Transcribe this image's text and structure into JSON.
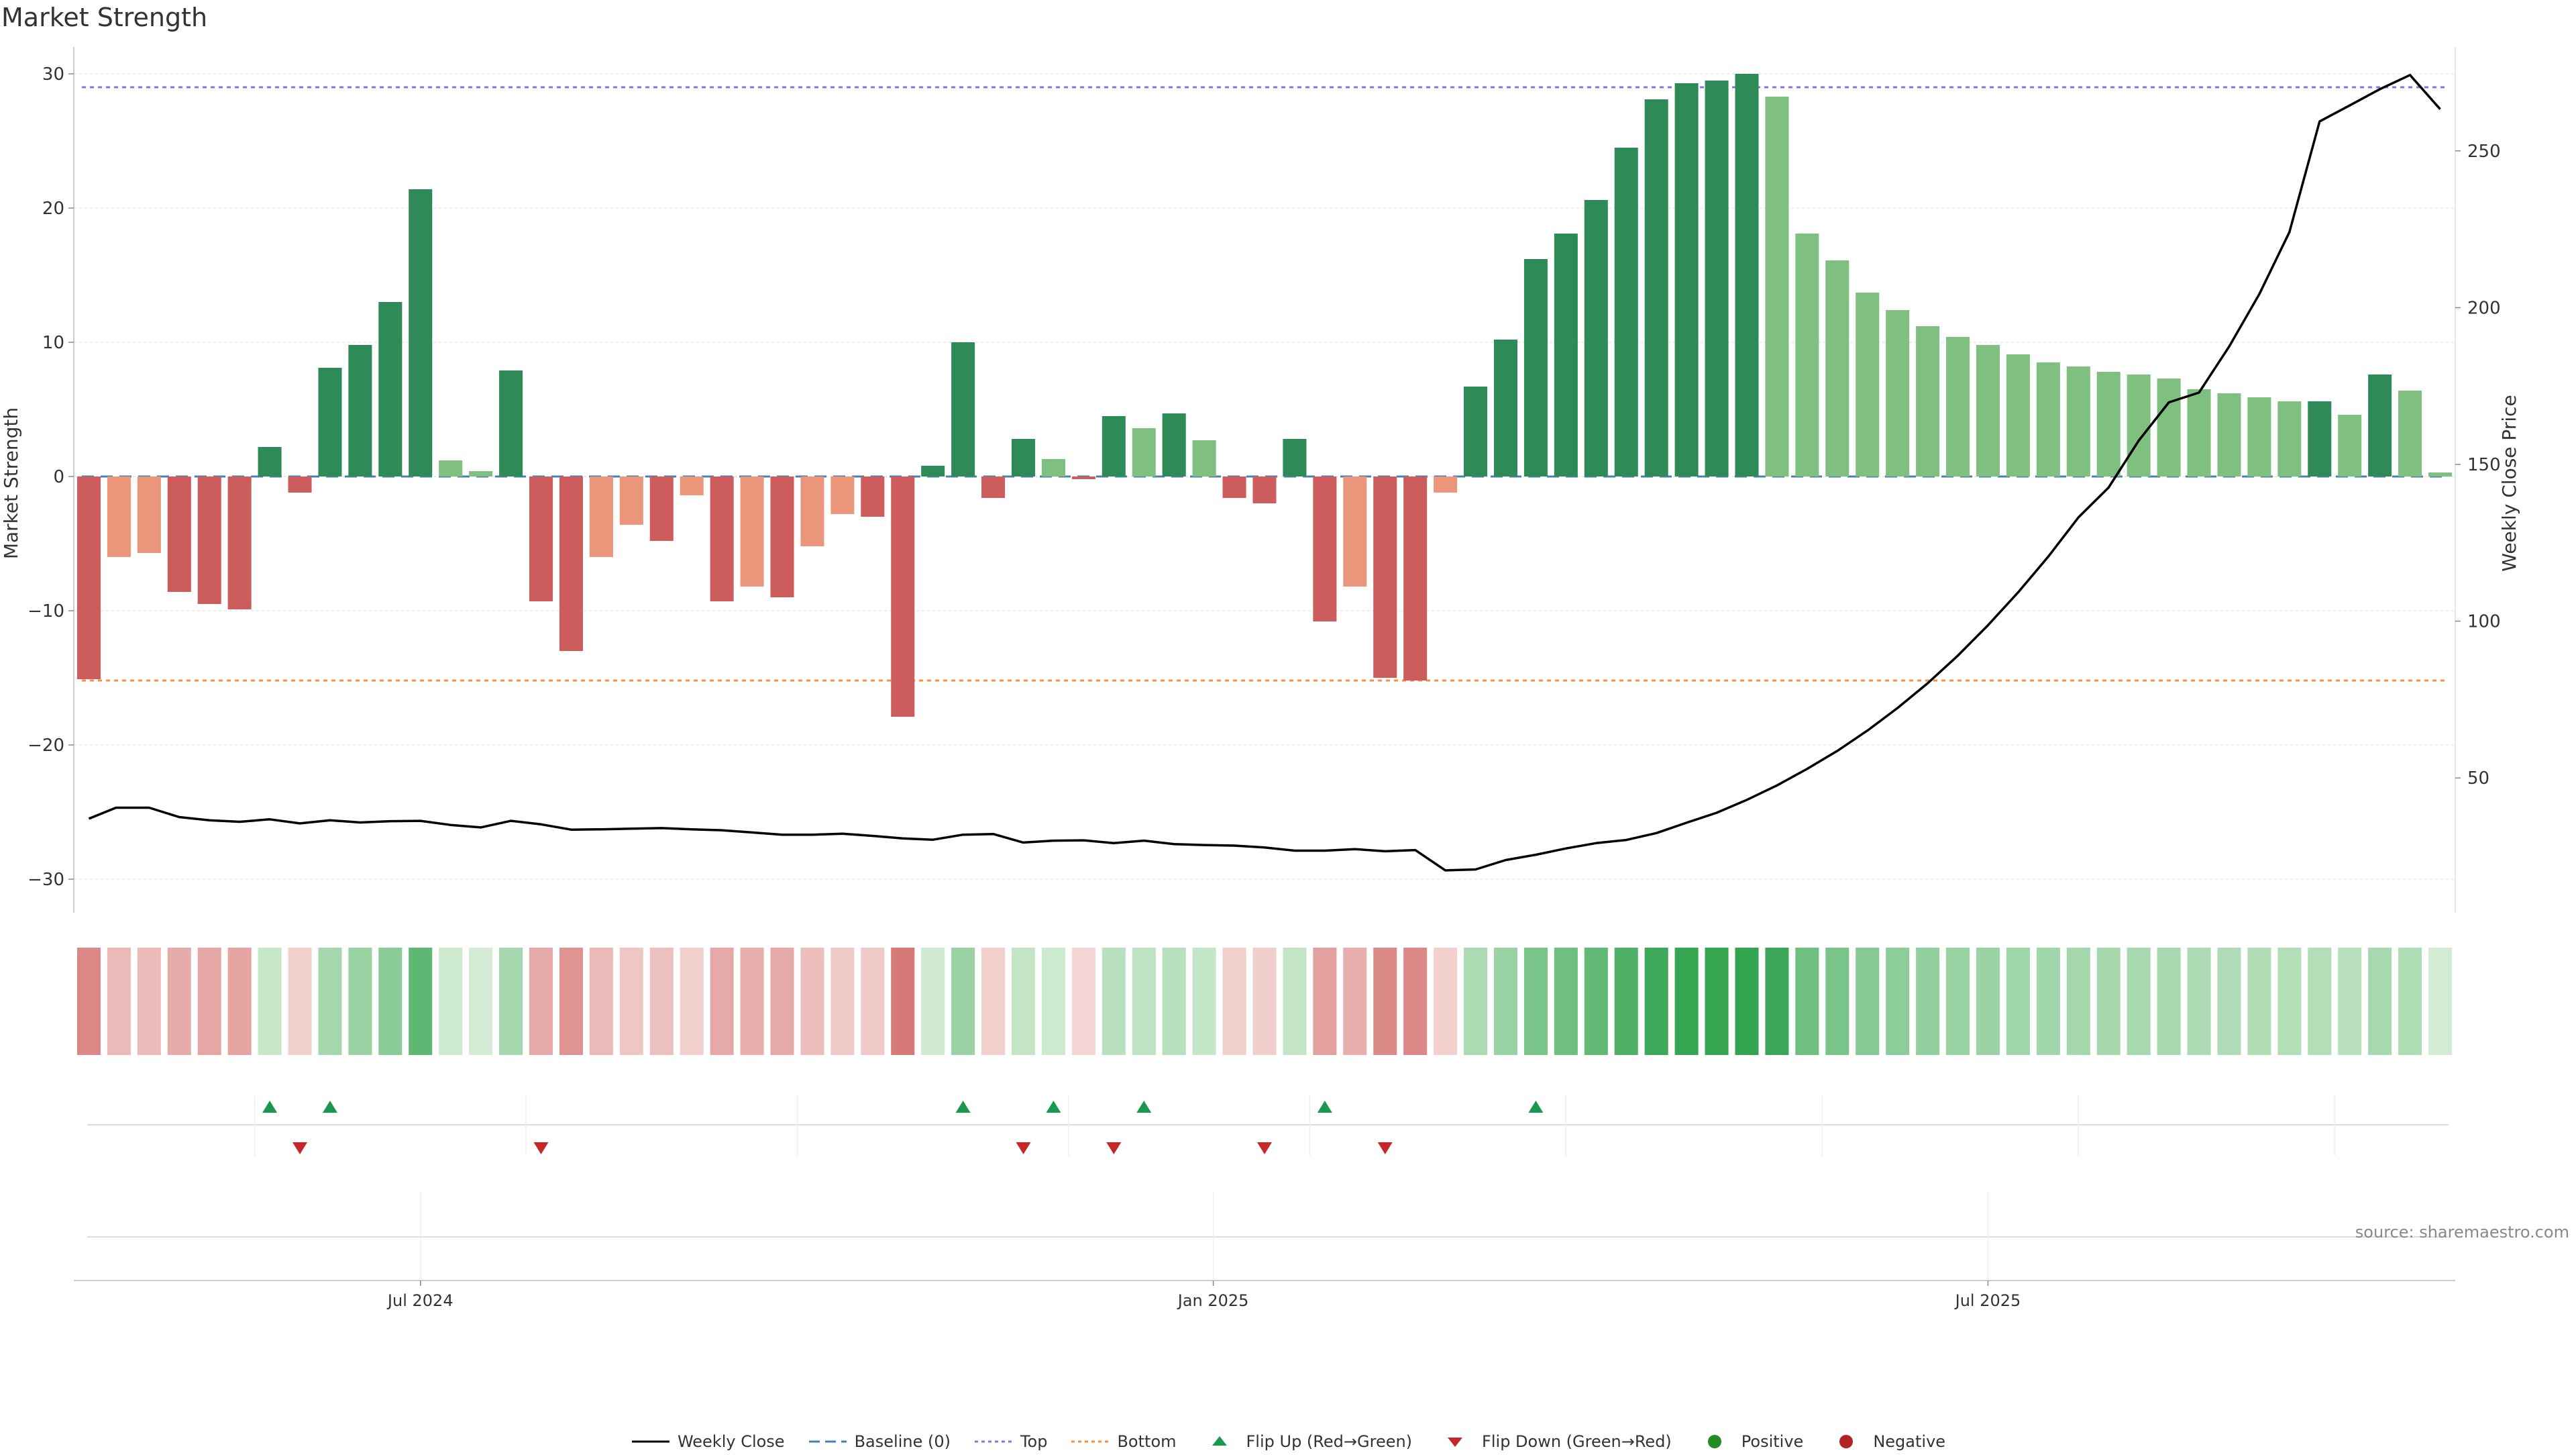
{
  "title": "Market Strength",
  "source": "source: sharemaestro.com",
  "legend": [
    {
      "key": "close",
      "label": "Weekly Close"
    },
    {
      "key": "baseline",
      "label": "Baseline (0)"
    },
    {
      "key": "top",
      "label": "Top"
    },
    {
      "key": "bottom",
      "label": "Bottom"
    },
    {
      "key": "flip_up",
      "label": "Flip Up (Red→Green)"
    },
    {
      "key": "flip_down",
      "label": "Flip Down (Green→Red)"
    },
    {
      "key": "positive",
      "label": "Positive"
    },
    {
      "key": "negative",
      "label": "Negative"
    }
  ],
  "colors": {
    "strong_pos": "#2e8b57",
    "weak_pos": "#7fbf7f",
    "strong_neg": "#cd5c5c",
    "weak_neg": "#e9967a",
    "close": "#000000",
    "baseline": "#4682b4",
    "top": "#9370db",
    "bottom": "#ff8c42",
    "flip_up": "#1a9850",
    "flip_down": "#c62828",
    "positive_dot": "#228b22",
    "negative_dot": "#b22222"
  },
  "chart_data": {
    "type": "bar",
    "title": "Market Strength",
    "ylabel": "Market Strength",
    "y2label": "Weekly Close Price",
    "ylim": [
      -32.5,
      31.5
    ],
    "y2lim": [
      7,
      281
    ],
    "yticks": [
      -30,
      -20,
      -10,
      0,
      10,
      20,
      30
    ],
    "y2ticks": [
      50,
      100,
      150,
      200,
      250
    ],
    "xticks": [
      {
        "label": "Jul 2024",
        "index": 11.0
      },
      {
        "label": "Jan 2025",
        "index": 37.3
      },
      {
        "label": "Jul 2025",
        "index": 63.0
      }
    ],
    "top_level": 29,
    "bottom_level": -15.2,
    "grid": true,
    "legend_position": "bottom",
    "strength": [
      -15.1,
      -6.0,
      -5.7,
      -8.6,
      -9.5,
      -9.9,
      2.2,
      -1.2,
      8.1,
      9.8,
      13.0,
      21.4,
      1.2,
      0.4,
      7.9,
      -9.3,
      -13.0,
      -6.0,
      -3.6,
      -4.8,
      -1.4,
      -9.3,
      -8.2,
      -9.0,
      -5.2,
      -2.8,
      -3.0,
      -17.9,
      0.8,
      10.0,
      -1.6,
      2.8,
      1.3,
      -0.2,
      4.5,
      3.6,
      4.7,
      2.7,
      -1.6,
      -2.0,
      2.8,
      -10.8,
      -8.2,
      -15.0,
      -15.2,
      -1.2,
      6.7,
      10.2,
      16.2,
      18.1,
      20.6,
      24.5,
      28.1,
      29.3,
      29.5,
      30.0,
      28.3,
      18.1,
      16.1,
      13.7,
      12.4,
      11.2,
      10.4,
      9.8,
      9.1,
      8.5,
      8.2,
      7.8,
      7.6,
      7.3,
      6.5,
      6.2,
      5.9,
      5.6,
      5.6,
      4.6,
      7.6,
      6.4,
      0.3
    ],
    "strength_class": [
      "strong",
      "weak",
      "weak",
      "strong",
      "strong",
      "strong",
      "strong",
      "strong",
      "strong",
      "strong",
      "strong",
      "strong",
      "weak",
      "weak",
      "strong",
      "strong",
      "strong",
      "weak",
      "weak",
      "strong",
      "weak",
      "strong",
      "weak",
      "strong",
      "weak",
      "weak",
      "strong",
      "strong",
      "strong",
      "strong",
      "strong",
      "strong",
      "weak",
      "strong",
      "strong",
      "weak",
      "strong",
      "weak",
      "strong",
      "strong",
      "strong",
      "strong",
      "weak",
      "strong",
      "strong",
      "weak",
      "strong",
      "strong",
      "strong",
      "strong",
      "strong",
      "strong",
      "strong",
      "strong",
      "strong",
      "strong",
      "weak",
      "weak",
      "weak",
      "weak",
      "weak",
      "weak",
      "weak",
      "weak",
      "weak",
      "weak",
      "weak",
      "weak",
      "weak",
      "weak",
      "weak",
      "weak",
      "weak",
      "weak",
      "strong",
      "weak",
      "strong",
      "weak",
      "weak"
    ],
    "close": [
      {
        "i": 0,
        "v": 37
      },
      {
        "i": 0.9,
        "v": 40.5
      },
      {
        "i": 2,
        "v": 40.5
      },
      {
        "i": 3,
        "v": 37.5
      },
      {
        "i": 4,
        "v": 36.5
      },
      {
        "i": 5,
        "v": 36
      },
      {
        "i": 6,
        "v": 36.8
      },
      {
        "i": 7,
        "v": 35.5
      },
      {
        "i": 8,
        "v": 36.5
      },
      {
        "i": 9,
        "v": 35.8
      },
      {
        "i": 10,
        "v": 36.2
      },
      {
        "i": 11,
        "v": 36.3
      },
      {
        "i": 12,
        "v": 35
      },
      {
        "i": 13,
        "v": 34.2
      },
      {
        "i": 14,
        "v": 36.3
      },
      {
        "i": 15,
        "v": 35.2
      },
      {
        "i": 16,
        "v": 33.5
      },
      {
        "i": 17,
        "v": 33.6
      },
      {
        "i": 18,
        "v": 33.8
      },
      {
        "i": 19,
        "v": 34
      },
      {
        "i": 20,
        "v": 33.6
      },
      {
        "i": 21,
        "v": 33.3
      },
      {
        "i": 22,
        "v": 32.6
      },
      {
        "i": 23,
        "v": 31.9
      },
      {
        "i": 24,
        "v": 31.9
      },
      {
        "i": 25,
        "v": 32.2
      },
      {
        "i": 26,
        "v": 31.5
      },
      {
        "i": 27,
        "v": 30.7
      },
      {
        "i": 28,
        "v": 30.3
      },
      {
        "i": 29,
        "v": 31.9
      },
      {
        "i": 30,
        "v": 32.1
      },
      {
        "i": 31,
        "v": 29.4
      },
      {
        "i": 32,
        "v": 30
      },
      {
        "i": 33,
        "v": 30.1
      },
      {
        "i": 34,
        "v": 29.2
      },
      {
        "i": 35,
        "v": 30
      },
      {
        "i": 36,
        "v": 28.9
      },
      {
        "i": 37,
        "v": 28.6
      },
      {
        "i": 38,
        "v": 28.4
      },
      {
        "i": 39,
        "v": 27.8
      },
      {
        "i": 40,
        "v": 26.8
      },
      {
        "i": 41,
        "v": 26.8
      },
      {
        "i": 42,
        "v": 27.3
      },
      {
        "i": 43,
        "v": 26.6
      },
      {
        "i": 44,
        "v": 27
      },
      {
        "i": 45,
        "v": 20.5
      },
      {
        "i": 46,
        "v": 20.8
      },
      {
        "i": 47,
        "v": 23.8
      },
      {
        "i": 48,
        "v": 25.5
      },
      {
        "i": 49,
        "v": 27.5
      },
      {
        "i": 50,
        "v": 29.2
      },
      {
        "i": 51,
        "v": 30.2
      },
      {
        "i": 52,
        "v": 32.4
      },
      {
        "i": 53,
        "v": 35.7
      },
      {
        "i": 54,
        "v": 38.9
      },
      {
        "i": 55,
        "v": 43
      },
      {
        "i": 56,
        "v": 47.6
      },
      {
        "i": 57,
        "v": 52.9
      },
      {
        "i": 58,
        "v": 58.6
      },
      {
        "i": 59,
        "v": 65.1
      },
      {
        "i": 60,
        "v": 72.3
      },
      {
        "i": 61,
        "v": 80.2
      },
      {
        "i": 62,
        "v": 89
      },
      {
        "i": 63,
        "v": 98.7
      },
      {
        "i": 64,
        "v": 109.2
      },
      {
        "i": 65,
        "v": 120.6
      },
      {
        "i": 66,
        "v": 133.1
      },
      {
        "i": 67,
        "v": 142.6
      },
      {
        "i": 68,
        "v": 157.6
      },
      {
        "i": 69,
        "v": 169.8
      },
      {
        "i": 70,
        "v": 172.9
      },
      {
        "i": 71,
        "v": 187.6
      },
      {
        "i": 72,
        "v": 204.3
      },
      {
        "i": 73,
        "v": 224.1
      },
      {
        "i": 74,
        "v": 259.4
      },
      {
        "i": 75,
        "v": 264.5
      },
      {
        "i": 76,
        "v": 269.7
      },
      {
        "i": 77,
        "v": 274.2
      },
      {
        "i": 78,
        "v": 263.3
      }
    ],
    "flip_up": [
      6,
      8,
      29,
      32,
      35,
      41,
      48
    ],
    "flip_down": [
      7,
      15,
      31,
      34,
      39,
      43
    ]
  }
}
